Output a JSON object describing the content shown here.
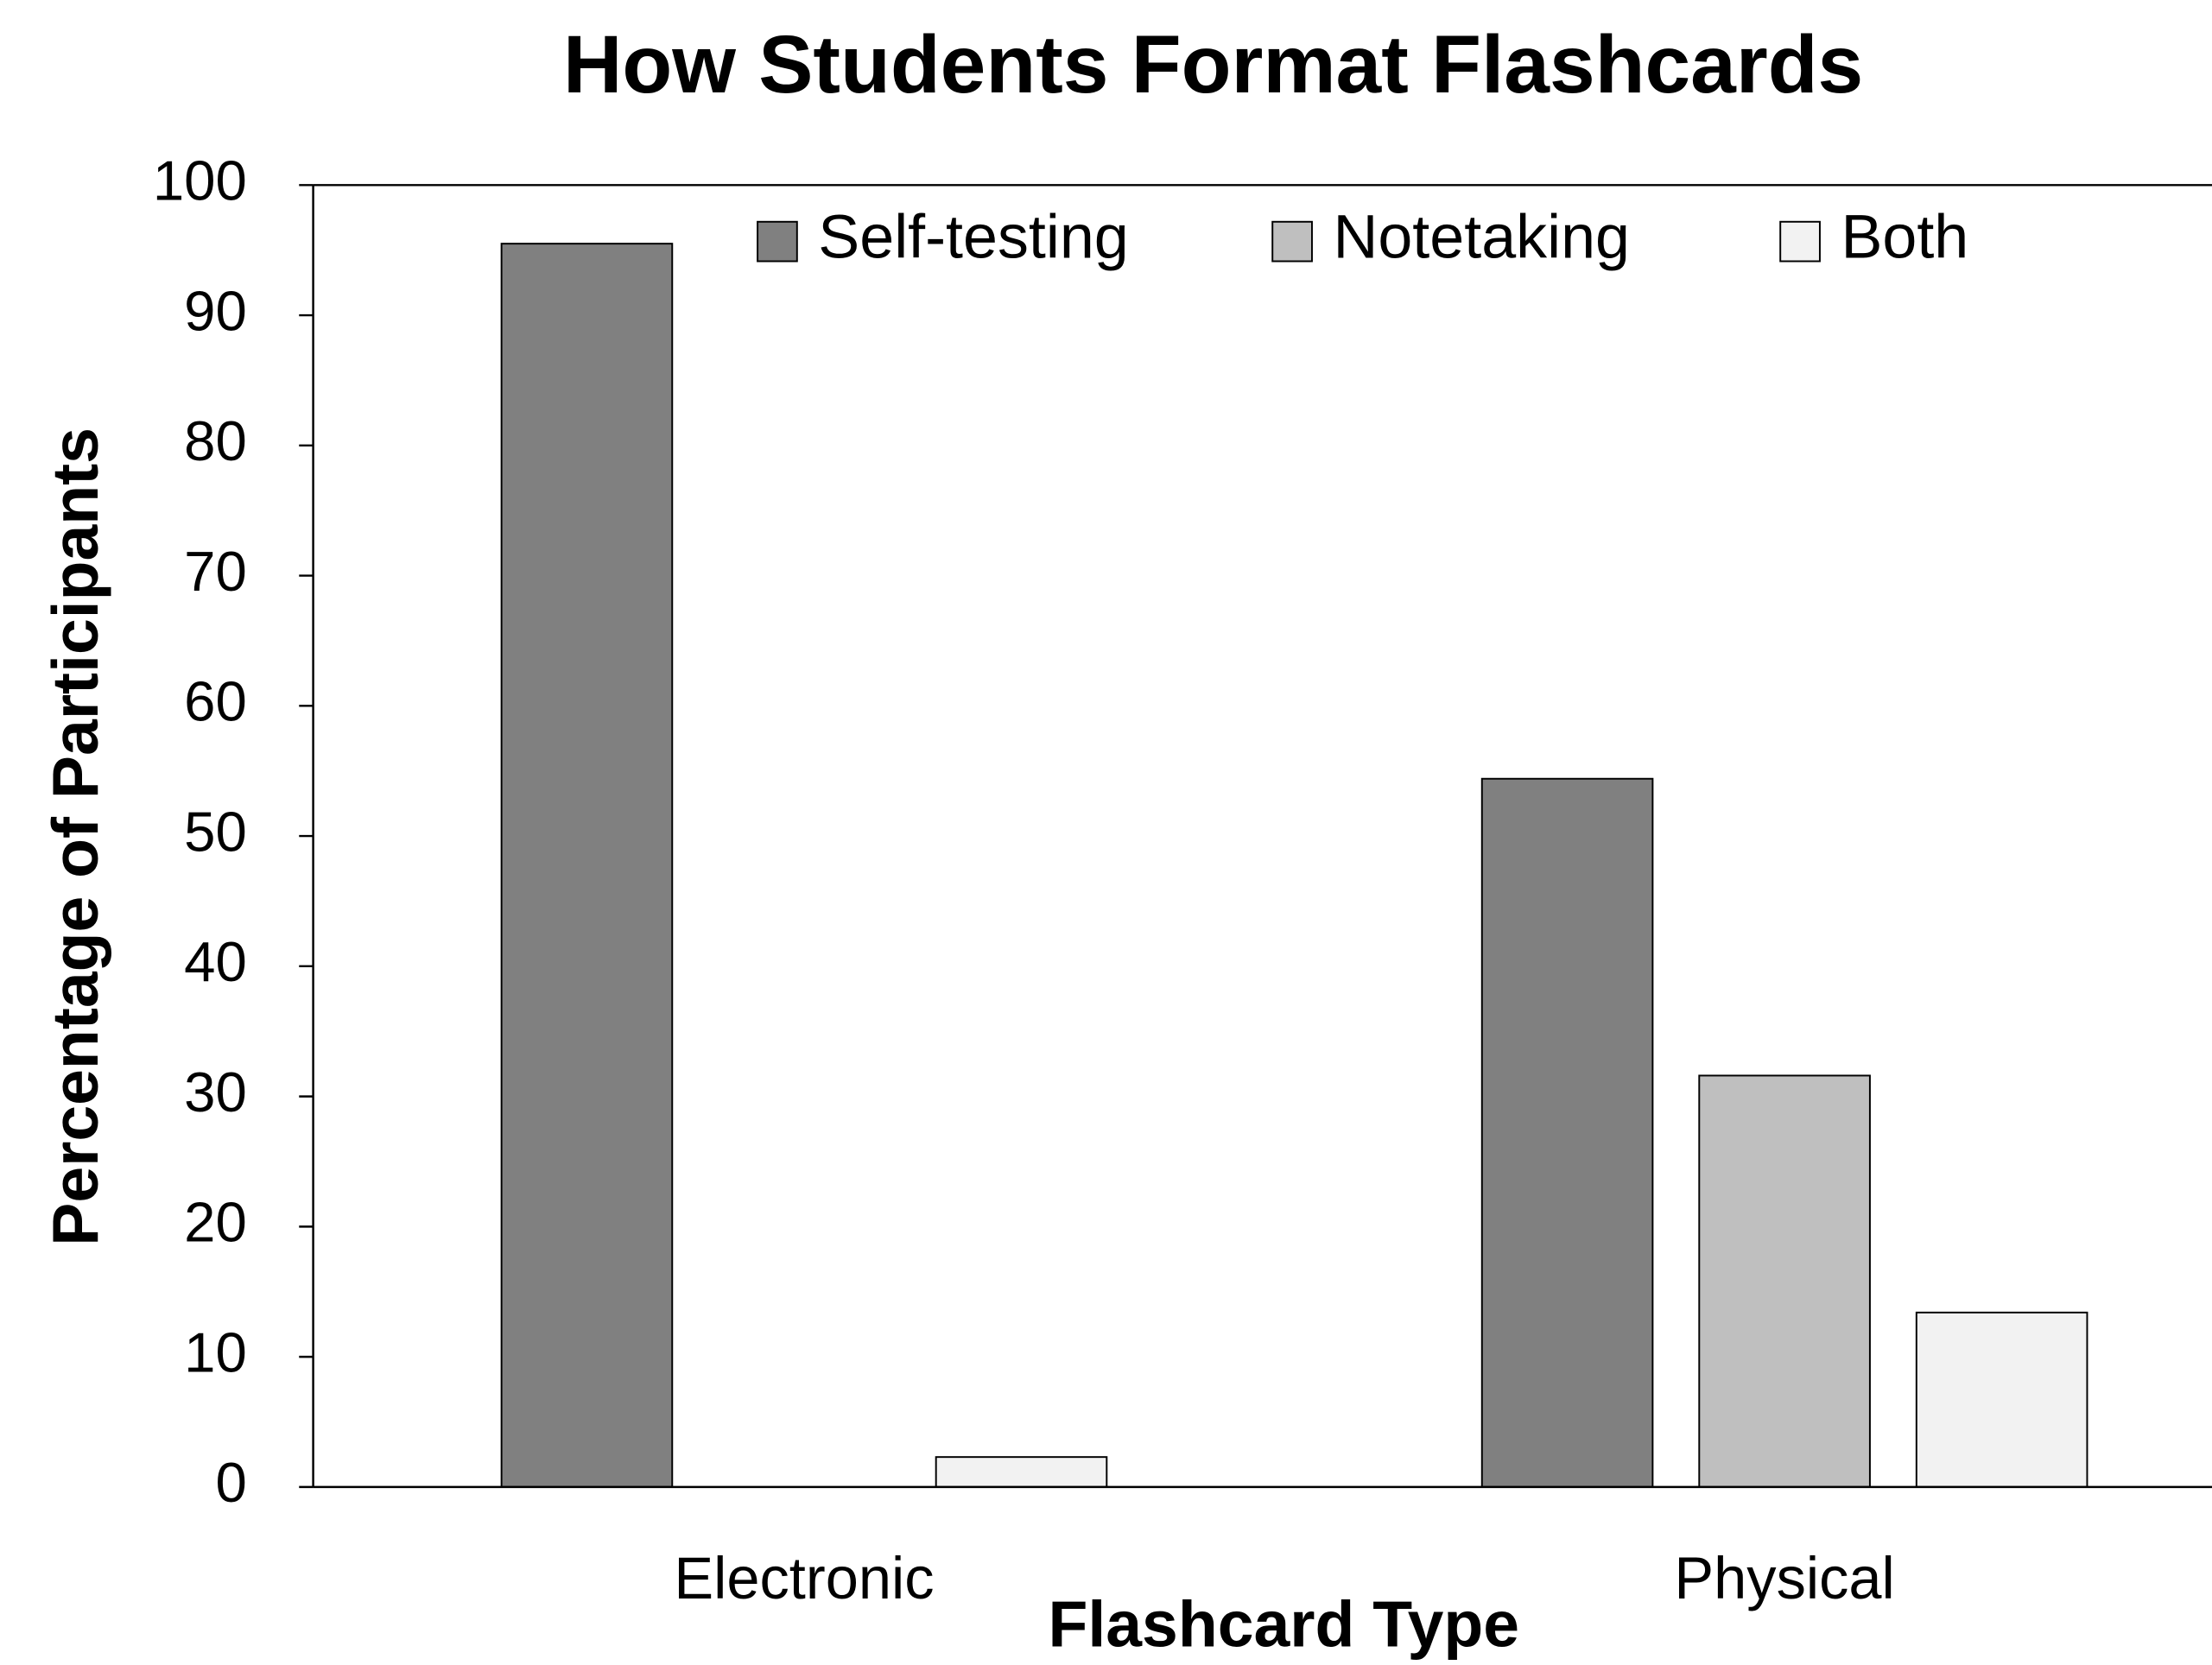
{
  "chart_data": {
    "type": "bar",
    "title": "How Students Format Flashcards",
    "xlabel": "Flashcard Type",
    "ylabel": "Percentage of Participants",
    "categories": [
      "Electronic",
      "Physical"
    ],
    "series": [
      {
        "name": "Self-testing",
        "color": "#808080",
        "values": [
          95.5,
          54.4
        ]
      },
      {
        "name": "Notetaking",
        "color": "#bfbfbf",
        "values": [
          0,
          31.6
        ]
      },
      {
        "name": "Both",
        "color": "#f2f2f2",
        "values": [
          2.3,
          13.4
        ]
      }
    ],
    "ylim": [
      0,
      100
    ],
    "yticks": [
      0,
      10,
      20,
      30,
      40,
      50,
      60,
      70,
      80,
      90,
      100
    ],
    "grid": false,
    "legend": "top"
  }
}
